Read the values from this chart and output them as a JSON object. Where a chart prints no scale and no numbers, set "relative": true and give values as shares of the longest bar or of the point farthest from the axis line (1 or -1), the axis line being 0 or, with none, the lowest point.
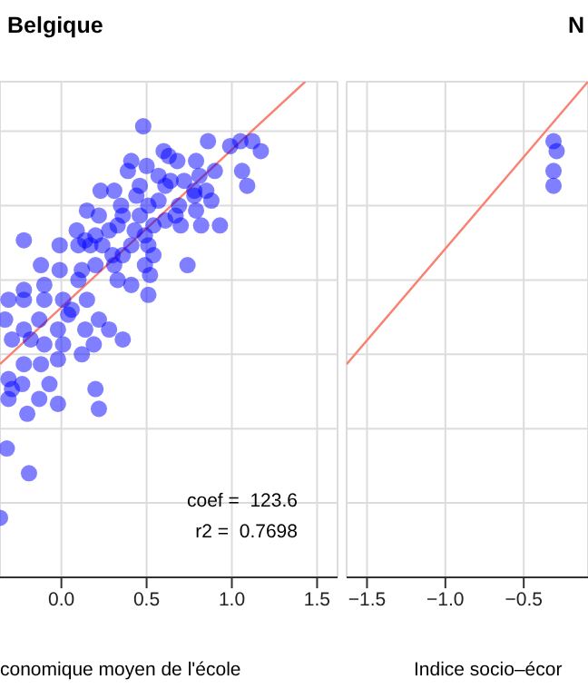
{
  "chart_data": [
    {
      "type": "scatter",
      "title": "Belgique",
      "xlabel": "conomique moyen de l'école",
      "relative": true,
      "grid": true,
      "xlim": [
        -0.36,
        1.62
      ],
      "xticks": [
        {
          "value": 0,
          "label": "0.0"
        },
        0.5,
        {
          "value": 1,
          "label": "1.0"
        },
        1.5
      ],
      "annotations": [
        "coef =  123.6",
        "r2 =  0.7698"
      ],
      "series": [
        {
          "marker": "circle",
          "color": "#0000ff",
          "x": [
            0.48,
            0.86,
            0.99,
            1.05,
            1.12,
            1.17,
            1.06,
            1.09,
            0.6,
            0.63,
            0.68,
            0.79,
            0.9,
            0.41,
            0.5,
            0.39,
            0.57,
            0.64,
            0.72,
            0.81,
            0.31,
            0.23,
            0.46,
            0.61,
            0.78,
            0.85,
            0.88,
            0.15,
            0.22,
            0.35,
            0.44,
            0.57,
            0.69,
            0.78,
            0.36,
            0.46,
            0.51,
            0.67,
            0.7,
            0.79,
            0.82,
            0.93,
            0.09,
            0.14,
            0.2,
            0.28,
            0.33,
            0.43,
            0.49,
            0.54,
            0.61,
            -0.22,
            -0.01,
            0.1,
            0.17,
            0.24,
            0.3,
            0.36,
            0.41,
            0.51,
            -0.12,
            -0.01,
            0.12,
            0.2,
            0.31,
            0.49,
            0.54,
            0.74,
            0.1,
            0.33,
            0.41,
            0.52,
            -0.22,
            -0.1,
            0.51,
            -0.31,
            -0.22,
            -0.1,
            0.01,
            0.15,
            0.06,
            -0.33,
            -0.22,
            -0.13,
            -0.02,
            0.04,
            0.14,
            0.19,
            0.28,
            0.36,
            0.22,
            -0.29,
            -0.18,
            -0.1,
            0.01,
            0.12,
            -0.31,
            -0.22,
            -0.12,
            -0.02,
            -0.29,
            -0.23,
            -0.07,
            0.2,
            -0.31,
            -0.2,
            -0.13,
            -0.02,
            0.22,
            -0.32,
            -0.19,
            -0.36
          ],
          "values": [
            0.91,
            0.88,
            0.87,
            0.88,
            0.88,
            0.86,
            0.82,
            0.79,
            0.86,
            0.85,
            0.84,
            0.84,
            0.82,
            0.84,
            0.83,
            0.82,
            0.81,
            0.8,
            0.8,
            0.81,
            0.78,
            0.78,
            0.79,
            0.79,
            0.78,
            0.78,
            0.76,
            0.74,
            0.73,
            0.75,
            0.77,
            0.76,
            0.75,
            0.77,
            0.73,
            0.73,
            0.75,
            0.73,
            0.71,
            0.74,
            0.71,
            0.71,
            0.7,
            0.68,
            0.69,
            0.7,
            0.71,
            0.7,
            0.69,
            0.71,
            0.72,
            0.68,
            0.67,
            0.67,
            0.67,
            0.67,
            0.65,
            0.65,
            0.67,
            0.67,
            0.63,
            0.62,
            0.62,
            0.63,
            0.63,
            0.63,
            0.65,
            0.63,
            0.6,
            0.6,
            0.59,
            0.61,
            0.58,
            0.59,
            0.57,
            0.56,
            0.56,
            0.56,
            0.56,
            0.56,
            0.54,
            0.52,
            0.5,
            0.52,
            0.5,
            0.53,
            0.5,
            0.47,
            0.5,
            0.48,
            0.52,
            0.48,
            0.48,
            0.47,
            0.47,
            0.45,
            0.4,
            0.43,
            0.43,
            0.44,
            0.38,
            0.39,
            0.39,
            0.38,
            0.36,
            0.33,
            0.36,
            0.35,
            0.34,
            0.26,
            0.21,
            0.12
          ]
        },
        {
          "type": "line",
          "color": "#fa8072",
          "x": [
            -0.36,
            1.43
          ],
          "values": [
            0.43,
            1.0
          ]
        }
      ]
    },
    {
      "type": "scatter",
      "title": "N",
      "xlabel": "Indice socio–écor",
      "relative": true,
      "grid": true,
      "xlim": [
        -1.63,
        -0.09
      ],
      "xticks": [
        {
          "value": -1.5,
          "label": "−1.5"
        },
        {
          "value": -1.0,
          "label": "−1.0"
        },
        {
          "value": -0.5,
          "label": "−0.5"
        }
      ],
      "series": [
        {
          "marker": "circle",
          "color": "#0000ff",
          "x": [
            -0.31,
            -0.29,
            -0.31,
            -0.31
          ],
          "values": [
            0.88,
            0.86,
            0.82,
            0.79
          ]
        },
        {
          "type": "line",
          "color": "#fa8072",
          "x": [
            -1.63,
            -0.09
          ],
          "values": [
            0.43,
            1.0
          ]
        }
      ]
    }
  ]
}
